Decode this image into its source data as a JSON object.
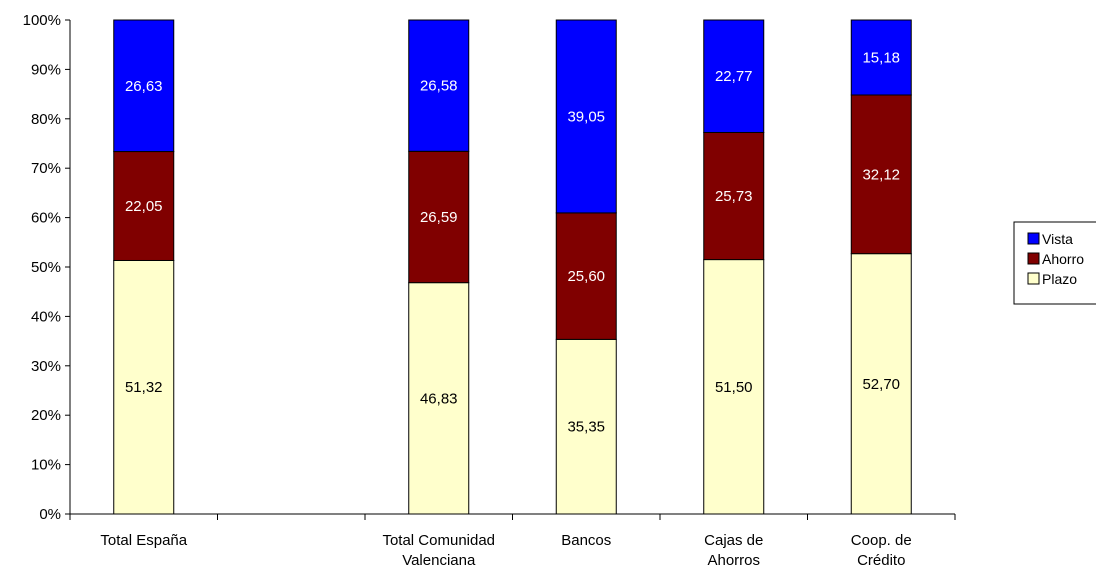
{
  "chart_data": {
    "type": "bar",
    "stacked": true,
    "percent_stacked": true,
    "categories": [
      [
        "Total España"
      ],
      [],
      [
        "Total Comunidad",
        "Valenciana"
      ],
      [
        "Bancos"
      ],
      [
        "Cajas de",
        "Ahorros"
      ],
      [
        "Coop. de",
        "Crédito"
      ]
    ],
    "series": [
      {
        "name": "Plazo",
        "color": "#ffffcc",
        "values": [
          51.32,
          null,
          46.83,
          35.35,
          51.5,
          52.7
        ],
        "labels": [
          "51,32",
          "",
          "46,83",
          "35,35",
          "51,50",
          "52,70"
        ],
        "label_color": "#000000"
      },
      {
        "name": "Ahorro",
        "color": "#800000",
        "values": [
          22.05,
          null,
          26.59,
          25.6,
          25.73,
          32.12
        ],
        "labels": [
          "22,05",
          "",
          "26,59",
          "25,60",
          "25,73",
          "32,12"
        ],
        "label_color": "#ffffff"
      },
      {
        "name": "Vista",
        "color": "#0000ff",
        "values": [
          26.63,
          null,
          26.58,
          39.05,
          22.77,
          15.18
        ],
        "labels": [
          "26,63",
          "",
          "26,58",
          "39,05",
          "22,77",
          "15,18"
        ],
        "label_color": "#ffffff"
      }
    ],
    "legend_order": [
      "Vista",
      "Ahorro",
      "Plazo"
    ],
    "legend_labels": [
      "Vista",
      "Ahorro",
      "Plazo"
    ],
    "y_ticks": [
      "0%",
      "10%",
      "20%",
      "30%",
      "40%",
      "50%",
      "60%",
      "70%",
      "80%",
      "90%",
      "100%"
    ],
    "ylim": [
      0,
      100
    ],
    "grid": false,
    "legend_position": "right"
  }
}
